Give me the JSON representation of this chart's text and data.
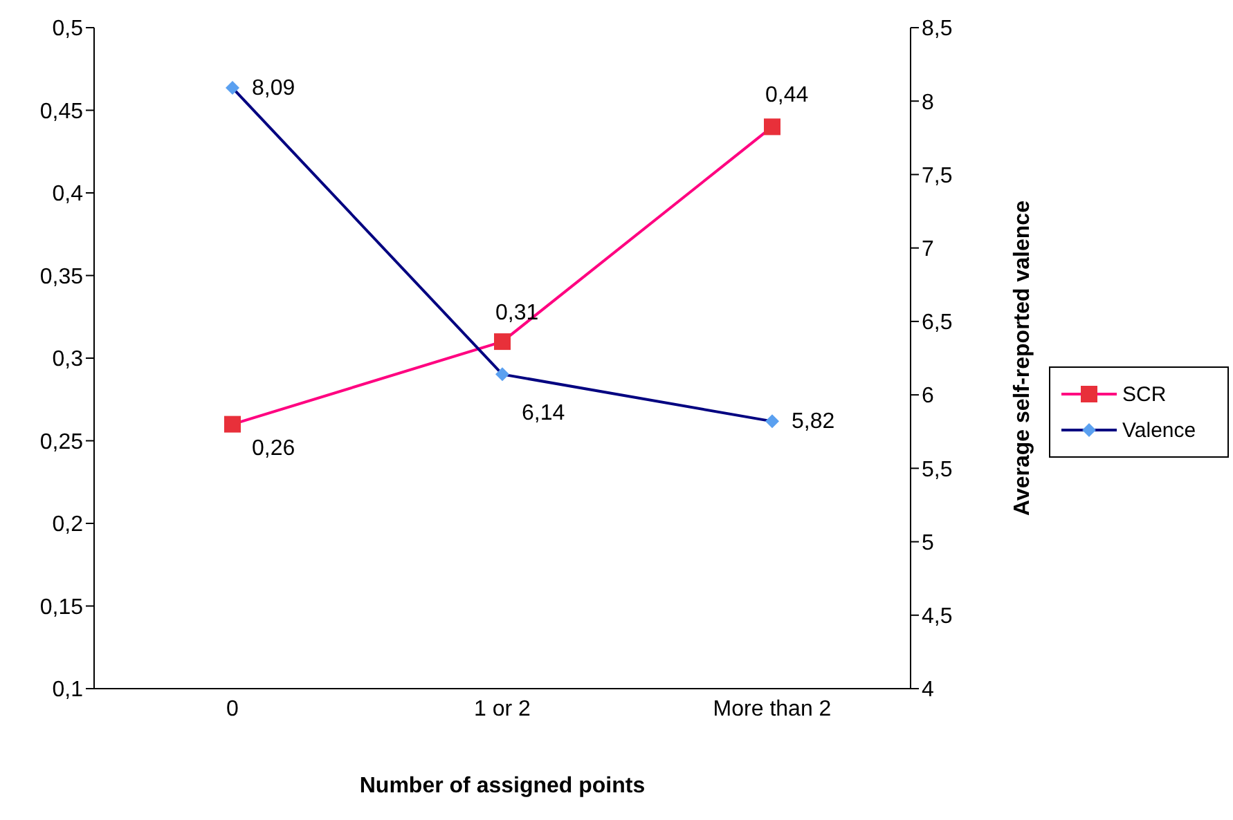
{
  "chart_data": {
    "type": "line",
    "xlabel": "Number of assigned points",
    "y2label": "Average self-reported valence",
    "categories": [
      "0",
      "1 or 2",
      "More than 2"
    ],
    "series": [
      {
        "name": "SCR",
        "color": "#ff0080",
        "colors": [
          "#e8303a",
          "#e8303a",
          "#e8303a"
        ],
        "marker": "square",
        "values": [
          0.26,
          0.31,
          0.44
        ],
        "value_labels": [
          "0,26",
          "0,31",
          "0,44"
        ]
      },
      {
        "name": "Valence",
        "color": "#000080",
        "colors": [
          "#5aa0f0",
          "#5aa0f0",
          "#5aa0f0"
        ],
        "marker": "diamond",
        "axis": "y2",
        "values": [
          8.09,
          6.14,
          5.82
        ],
        "value_labels": [
          "8,09",
          "6,14",
          "5,82"
        ]
      }
    ],
    "ylim": [
      0.1,
      0.5
    ],
    "yticks": [
      {
        "value": 0.1,
        "label": "0,1"
      },
      {
        "value": 0.15,
        "label": "0,15"
      },
      {
        "value": 0.2,
        "label": "0,2"
      },
      {
        "value": 0.25,
        "label": "0,25"
      },
      {
        "value": 0.3,
        "label": "0,3"
      },
      {
        "value": 0.35,
        "label": "0,35"
      },
      {
        "value": 0.4,
        "label": "0,4"
      },
      {
        "value": 0.45,
        "label": "0,45"
      },
      {
        "value": 0.5,
        "label": "0,5"
      }
    ],
    "y2lim": [
      4,
      8.5
    ],
    "y2ticks": [
      4,
      {
        "value": 4.5,
        "label": "4,5"
      },
      5,
      {
        "value": 5.5,
        "label": "5,5"
      },
      6,
      {
        "value": 6.5,
        "label": "6,5"
      },
      7,
      {
        "value": 7.5,
        "label": "7,5"
      },
      8,
      {
        "value": 8.5,
        "label": "8,5"
      }
    ],
    "grid": false,
    "legend": "right"
  }
}
